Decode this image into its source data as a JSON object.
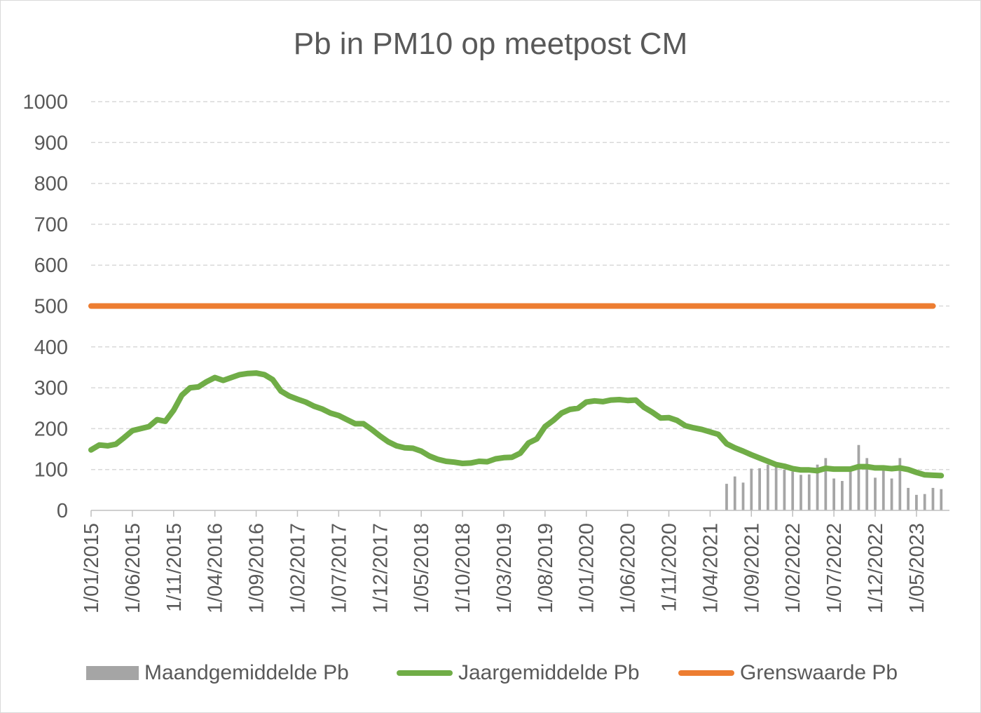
{
  "chart_data": {
    "type": "line",
    "title": "Pb in PM10 op meetpost CM",
    "xlabel": "",
    "ylabel": "",
    "ylim": [
      0,
      1000
    ],
    "yticks": [
      0,
      100,
      200,
      300,
      400,
      500,
      600,
      700,
      800,
      900,
      1000
    ],
    "xlim": [
      "2015-01-01",
      "2023-09-01"
    ],
    "xtick_labels": [
      "1/01/2015",
      "1/06/2015",
      "1/11/2015",
      "1/04/2016",
      "1/09/2016",
      "1/02/2017",
      "1/07/2017",
      "1/12/2017",
      "1/05/2018",
      "1/10/2018",
      "1/03/2019",
      "1/08/2019",
      "1/01/2020",
      "1/06/2020",
      "1/11/2020",
      "1/04/2021",
      "1/09/2021",
      "1/02/2022",
      "1/07/2022",
      "1/12/2022",
      "1/05/2023"
    ],
    "grid": true,
    "legend_position": "bottom",
    "series": [
      {
        "name": "Maandgemiddelde Pb",
        "type": "bar",
        "color": "#a5a5a5",
        "points": [
          [
            "2021-06",
            65
          ],
          [
            "2021-07",
            83
          ],
          [
            "2021-08",
            68
          ],
          [
            "2021-09",
            102
          ],
          [
            "2021-10",
            103
          ],
          [
            "2021-11",
            112
          ],
          [
            "2021-12",
            110
          ],
          [
            "2022-01",
            100
          ],
          [
            "2022-02",
            95
          ],
          [
            "2022-03",
            87
          ],
          [
            "2022-04",
            88
          ],
          [
            "2022-05",
            112
          ],
          [
            "2022-06",
            128
          ],
          [
            "2022-07",
            78
          ],
          [
            "2022-08",
            72
          ],
          [
            "2022-09",
            100
          ],
          [
            "2022-10",
            160
          ],
          [
            "2022-11",
            128
          ],
          [
            "2022-12",
            80
          ],
          [
            "2023-01",
            105
          ],
          [
            "2023-02",
            78
          ],
          [
            "2023-03",
            128
          ],
          [
            "2023-04",
            55
          ],
          [
            "2023-05",
            38
          ],
          [
            "2023-06",
            40
          ],
          [
            "2023-07",
            55
          ],
          [
            "2023-08",
            52
          ]
        ]
      },
      {
        "name": "Jaargemiddelde Pb",
        "type": "line",
        "color": "#70ad47",
        "points": [
          [
            "2015-01",
            148
          ],
          [
            "2015-02",
            160
          ],
          [
            "2015-03",
            158
          ],
          [
            "2015-04",
            162
          ],
          [
            "2015-05",
            178
          ],
          [
            "2015-06",
            195
          ],
          [
            "2015-07",
            200
          ],
          [
            "2015-08",
            205
          ],
          [
            "2015-09",
            222
          ],
          [
            "2015-10",
            218
          ],
          [
            "2015-11",
            245
          ],
          [
            "2015-12",
            282
          ],
          [
            "2016-01",
            300
          ],
          [
            "2016-02",
            302
          ],
          [
            "2016-03",
            315
          ],
          [
            "2016-04",
            325
          ],
          [
            "2016-05",
            318
          ],
          [
            "2016-06",
            325
          ],
          [
            "2016-07",
            332
          ],
          [
            "2016-08",
            335
          ],
          [
            "2016-09",
            336
          ],
          [
            "2016-10",
            332
          ],
          [
            "2016-11",
            320
          ],
          [
            "2016-12",
            292
          ],
          [
            "2017-01",
            280
          ],
          [
            "2017-02",
            272
          ],
          [
            "2017-03",
            265
          ],
          [
            "2017-04",
            255
          ],
          [
            "2017-05",
            248
          ],
          [
            "2017-06",
            238
          ],
          [
            "2017-07",
            232
          ],
          [
            "2017-08",
            222
          ],
          [
            "2017-09",
            212
          ],
          [
            "2017-10",
            212
          ],
          [
            "2017-11",
            198
          ],
          [
            "2017-12",
            182
          ],
          [
            "2018-01",
            168
          ],
          [
            "2018-02",
            158
          ],
          [
            "2018-03",
            153
          ],
          [
            "2018-04",
            152
          ],
          [
            "2018-05",
            145
          ],
          [
            "2018-06",
            133
          ],
          [
            "2018-07",
            125
          ],
          [
            "2018-08",
            120
          ],
          [
            "2018-09",
            118
          ],
          [
            "2018-10",
            115
          ],
          [
            "2018-11",
            116
          ],
          [
            "2018-12",
            120
          ],
          [
            "2019-01",
            119
          ],
          [
            "2019-02",
            126
          ],
          [
            "2019-03",
            129
          ],
          [
            "2019-04",
            130
          ],
          [
            "2019-05",
            140
          ],
          [
            "2019-06",
            165
          ],
          [
            "2019-07",
            175
          ],
          [
            "2019-08",
            205
          ],
          [
            "2019-09",
            220
          ],
          [
            "2019-10",
            238
          ],
          [
            "2019-11",
            247
          ],
          [
            "2019-12",
            250
          ],
          [
            "2020-01",
            265
          ],
          [
            "2020-02",
            268
          ],
          [
            "2020-03",
            266
          ],
          [
            "2020-04",
            270
          ],
          [
            "2020-05",
            271
          ],
          [
            "2020-06",
            269
          ],
          [
            "2020-07",
            270
          ],
          [
            "2020-08",
            252
          ],
          [
            "2020-09",
            240
          ],
          [
            "2020-10",
            226
          ],
          [
            "2020-11",
            227
          ],
          [
            "2020-12",
            220
          ],
          [
            "2021-01",
            207
          ],
          [
            "2021-02",
            202
          ],
          [
            "2021-03",
            198
          ],
          [
            "2021-04",
            192
          ],
          [
            "2021-05",
            186
          ],
          [
            "2021-06",
            163
          ],
          [
            "2021-07",
            153
          ],
          [
            "2021-08",
            145
          ],
          [
            "2021-09",
            136
          ],
          [
            "2021-10",
            128
          ],
          [
            "2021-11",
            120
          ],
          [
            "2021-12",
            112
          ],
          [
            "2022-01",
            108
          ],
          [
            "2022-02",
            102
          ],
          [
            "2022-03",
            99
          ],
          [
            "2022-04",
            99
          ],
          [
            "2022-05",
            97
          ],
          [
            "2022-06",
            103
          ],
          [
            "2022-07",
            101
          ],
          [
            "2022-08",
            101
          ],
          [
            "2022-09",
            101
          ],
          [
            "2022-10",
            107
          ],
          [
            "2022-11",
            107
          ],
          [
            "2022-12",
            104
          ],
          [
            "2023-01",
            104
          ],
          [
            "2023-02",
            102
          ],
          [
            "2023-03",
            104
          ],
          [
            "2023-04",
            100
          ],
          [
            "2023-05",
            93
          ],
          [
            "2023-06",
            87
          ],
          [
            "2023-07",
            86
          ],
          [
            "2023-08",
            85
          ]
        ]
      },
      {
        "name": "Grenswaarde Pb",
        "type": "line",
        "color": "#ed7d31",
        "points": [
          [
            "2015-01",
            500
          ],
          [
            "2023-07",
            500
          ]
        ]
      }
    ]
  }
}
